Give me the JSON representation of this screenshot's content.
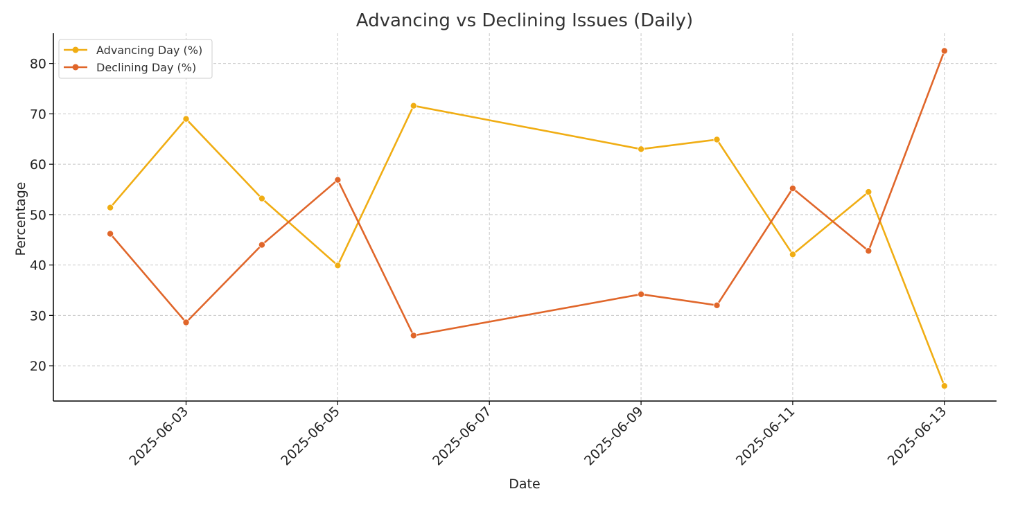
{
  "chart_data": {
    "type": "line",
    "title": "Advancing vs Declining Issues (Daily)",
    "xlabel": "Date",
    "ylabel": "Percentage",
    "x": [
      "2025-06-02",
      "2025-06-03",
      "2025-06-04",
      "2025-06-05",
      "2025-06-06",
      "2025-06-09",
      "2025-06-10",
      "2025-06-11",
      "2025-06-12",
      "2025-06-13"
    ],
    "x_ticks": [
      "2025-06-03",
      "2025-06-05",
      "2025-06-07",
      "2025-06-09",
      "2025-06-11",
      "2025-06-13"
    ],
    "y_ticks": [
      20,
      30,
      40,
      50,
      60,
      70,
      80
    ],
    "ylim": [
      13,
      86
    ],
    "xlim": [
      "2025-06-01T06:00",
      "2025-06-13T16:30"
    ],
    "grid": true,
    "legend_position": "top-left",
    "series": [
      {
        "name": "Advancing Day (%)",
        "color": "#f0ad13",
        "values": [
          51.4,
          69.0,
          53.2,
          39.9,
          71.6,
          63.0,
          64.9,
          42.1,
          54.5,
          16.0
        ]
      },
      {
        "name": "Declining Day (%)",
        "color": "#e0662a",
        "values": [
          46.2,
          28.6,
          44.0,
          56.9,
          26.0,
          34.2,
          32.0,
          55.2,
          42.8,
          82.5
        ]
      }
    ]
  }
}
